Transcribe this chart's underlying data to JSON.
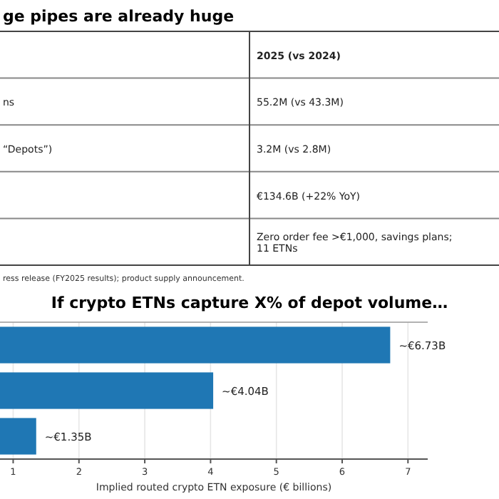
{
  "chart_data": [
    {
      "type": "other",
      "title": "ge pipes are already huge",
      "categories": [
        null,
        "ns",
        "“Depots”)",
        null,
        null
      ],
      "annotations": [
        "2025 (vs 2024)",
        "55.2M (vs 43.3M)",
        "3.2M (vs 2.8M)",
        "€134.6B (+22% YoY)",
        "Zero order fee >€1,000, savings plans;\n11 ETNs",
        "ress release (FY2025 results); product supply announcement."
      ]
    },
    {
      "type": "bar",
      "orientation": "horizontal",
      "title": "If crypto ETNs capture X% of depot volume…",
      "xlabel": "Implied routed crypto ETN exposure (€ billions)",
      "categories": [
        null,
        null,
        null
      ],
      "values": [
        6.73,
        4.04,
        1.35
      ],
      "color": "#1f77b4",
      "value_labels": [
        "~€6.73B",
        "~€4.04B",
        "~€1.35B"
      ],
      "xlim": [
        0.8,
        7.3
      ],
      "xticks": [
        1,
        2,
        3,
        4,
        5,
        6,
        7
      ],
      "grid": "x"
    }
  ]
}
